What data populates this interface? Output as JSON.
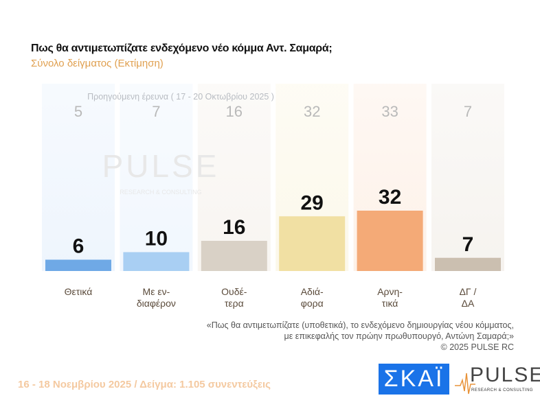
{
  "header": {
    "title": "Πως θα αντιμετωπίζατε ενδεχόμενο νέο κόμμα Αντ. Σαμαρά;",
    "subtitle": "Σύνολο δείγματος   (Εκτίμηση)"
  },
  "chart_data": {
    "type": "bar",
    "title": "Πως θα αντιμετωπίζατε ενδεχόμενο νέο κόμμα Αντ. Σαμαρά;",
    "categories": [
      [
        "Θετικά"
      ],
      [
        "Με εν-",
        "διαφέρον"
      ],
      [
        "Ουδέ-",
        "τερα"
      ],
      [
        "Αδιά-",
        "φορα"
      ],
      [
        "Αρνη-",
        "τικά"
      ],
      [
        "ΔΓ /",
        "ΔΑ"
      ]
    ],
    "values": [
      6,
      10,
      16,
      29,
      32,
      7
    ],
    "previous_label": "Προηγούμενη έρευνα ( 17 - 20 Οκτωβρίου 2025 )",
    "previous_values": [
      5,
      7,
      16,
      32,
      33,
      7
    ],
    "colors": [
      "#6fa9e6",
      "#a9cff3",
      "#d9d1c6",
      "#f1e0a3",
      "#f4aa77",
      "#cbbfb0"
    ],
    "bg_colors": [
      "#eef5fd",
      "#f1f7fe",
      "#f8f5f1",
      "#fcf8ea",
      "#fdf1e8",
      "#f6f3ef"
    ],
    "ylim": [
      0,
      100
    ]
  },
  "watermark": {
    "word": "PULSE",
    "tag": "RESEARCH & CONSULTING"
  },
  "note": {
    "line1": "«Πως θα αντιμετωπίζατε (υποθετικά), το ενδεχόμενο δημιουργίας νέου κόμματος,",
    "line2": "με επικεφαλής τον πρώην πρωθυπουργό, Αντώνη Σαμαρά;»",
    "line3": "©  2025  PULSE RC"
  },
  "footer": "16 - 18 Νοεμβρίου 2025  /  Δείγμα:  1.105 συνεντεύξεις",
  "logos": {
    "skai": "ΣΚΑΪ",
    "pulse": "PULSE",
    "pulse_tag": "RESEARCH & CONSULTING"
  }
}
